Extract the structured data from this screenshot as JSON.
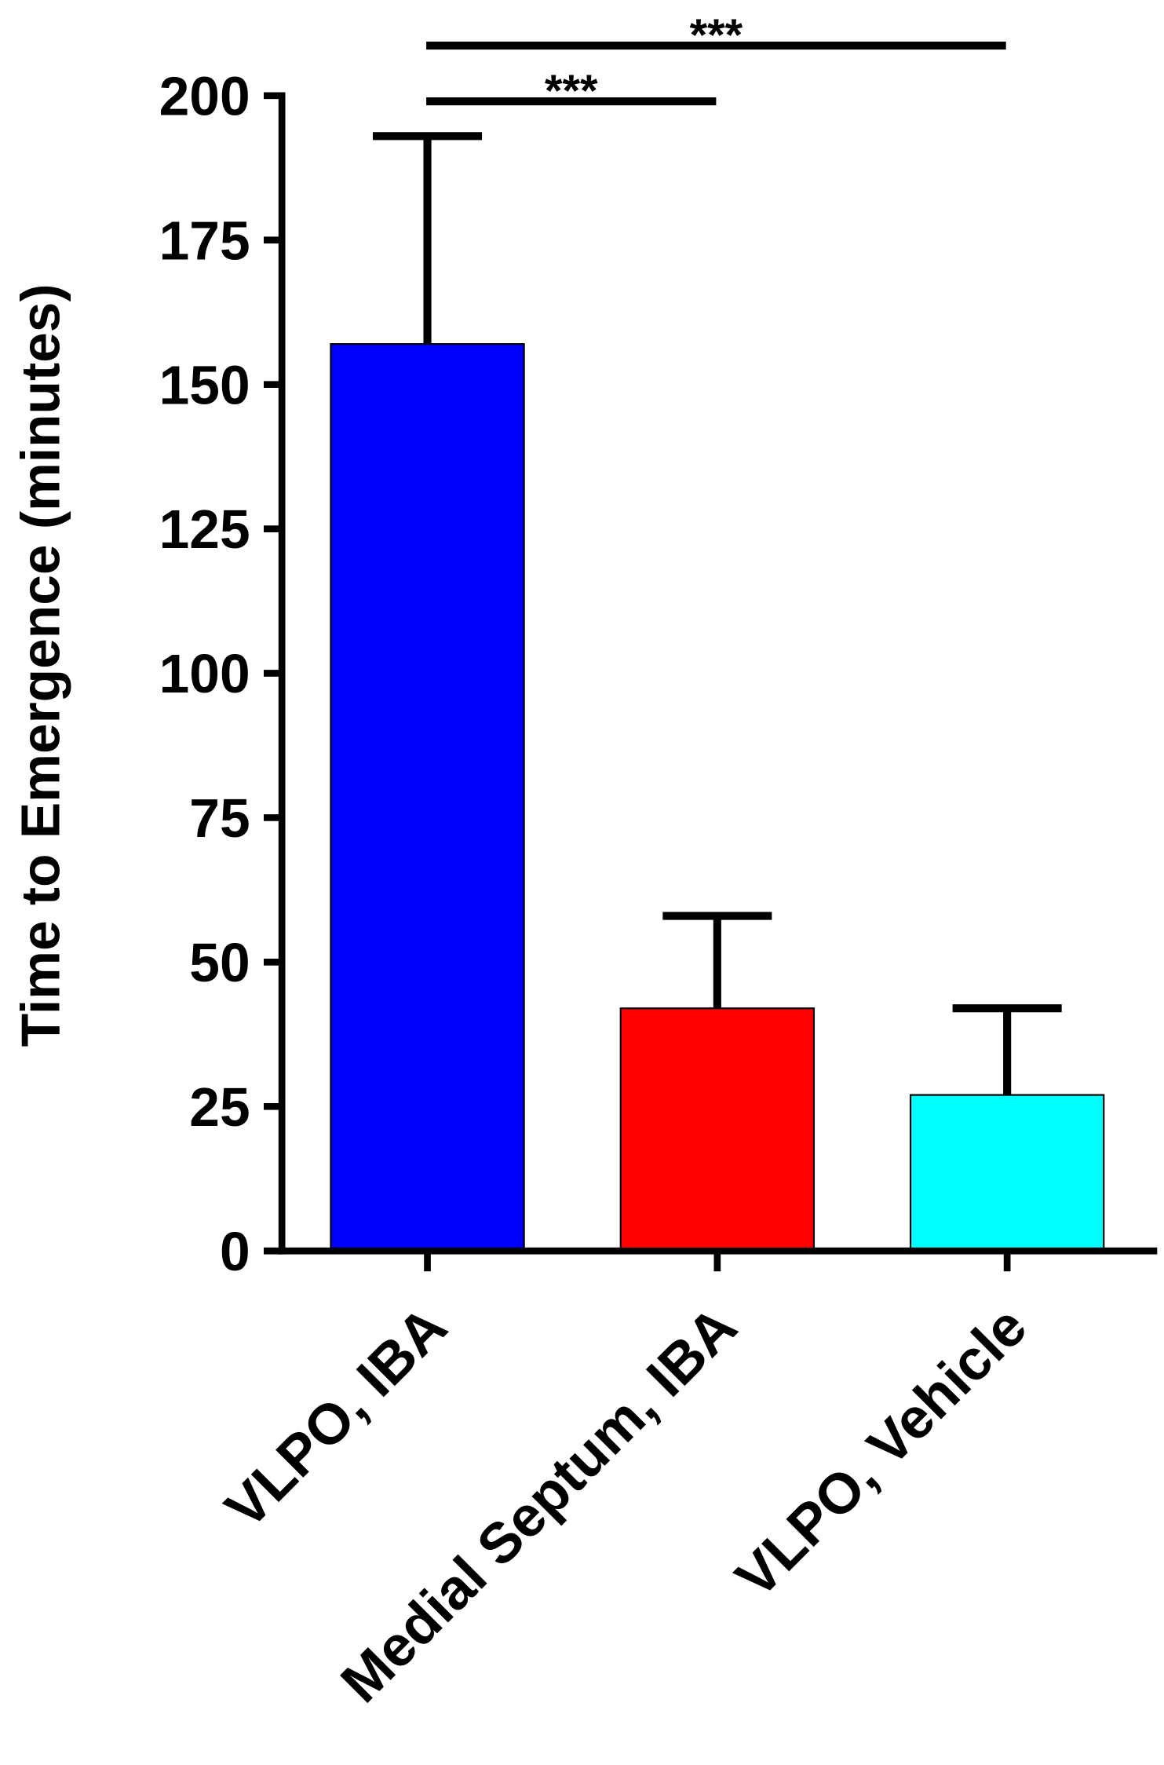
{
  "chart_data": {
    "type": "bar",
    "ylabel": "Time to Emergence  (minutes)",
    "categories": [
      "VLPO, IBA",
      "Medial Septum, IBA",
      "VLPO, Vehicle"
    ],
    "series": [
      {
        "values": [
          157,
          42,
          27
        ],
        "errors": [
          36,
          16,
          15
        ],
        "colors": [
          "#0000ff",
          "#ff0000",
          "#00ffff"
        ]
      }
    ],
    "ylim": [
      0,
      200
    ],
    "yticks": [
      0,
      25,
      50,
      75,
      100,
      125,
      150,
      175,
      200
    ],
    "annotations": [
      "***",
      "***"
    ]
  }
}
